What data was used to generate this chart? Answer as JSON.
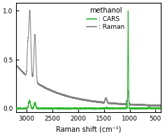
{
  "title": "methanol",
  "xlabel": "Raman shift (cm⁻¹)",
  "xlim": [
    3200,
    400
  ],
  "ylim": [
    -0.04,
    1.08
  ],
  "yticks": [
    0,
    0.5,
    1
  ],
  "xticks": [
    3000,
    2500,
    2000,
    1500,
    1000,
    500
  ],
  "cars_color": "#2db82d",
  "raman_color": "#808080",
  "legend_title": "methanol",
  "figsize": [
    2.36,
    1.94
  ],
  "dpi": 100
}
